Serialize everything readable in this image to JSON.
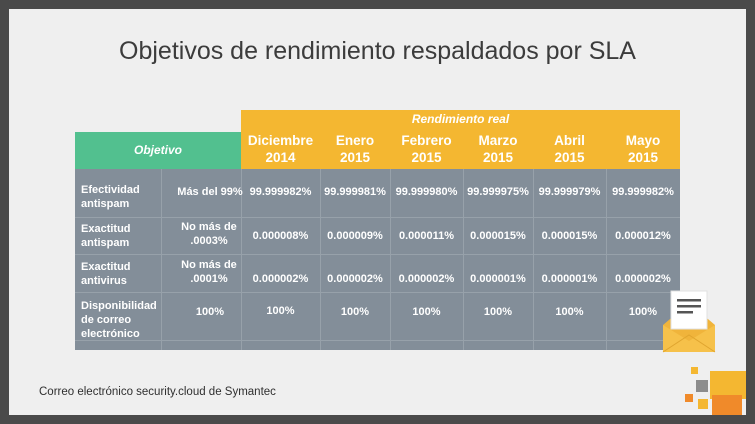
{
  "slide": {
    "title": "Objetivos de rendimiento respaldados por SLA",
    "footer": "Correo electrónico security.cloud de Symantec"
  },
  "table": {
    "objective_header": "Objetivo",
    "actual_header": "Rendimiento real",
    "months": [
      {
        "name": "Diciembre",
        "year": "2014"
      },
      {
        "name": "Enero",
        "year": "2015"
      },
      {
        "name": "Febrero",
        "year": "2015"
      },
      {
        "name": "Marzo",
        "year": "2015"
      },
      {
        "name": "Abril",
        "year": "2015"
      },
      {
        "name": "Mayo",
        "year": "2015"
      }
    ],
    "rows": [
      {
        "metric": "Efectividad antispam",
        "objective": "Más del 99%",
        "values": [
          "99.999982%",
          "99.999981%",
          "99.999980%",
          "99.999975%",
          "99.999979%",
          "99.999982%"
        ]
      },
      {
        "metric": "Exactitud antispam",
        "objective": "No más de .0003%",
        "values": [
          "0.000008%",
          "0.000009%",
          "0.000011%",
          "0.000015%",
          "0.000015%",
          "0.000012%"
        ]
      },
      {
        "metric": "Exactitud antivirus",
        "objective": "No más de .0001%",
        "values": [
          "0.000002%",
          "0.000002%",
          "0.000002%",
          "0.000001%",
          "0.000001%",
          "0.000002%"
        ]
      },
      {
        "metric": "Disponibilidad de correo electrónico",
        "objective": "100%",
        "values": [
          "100%",
          "100%",
          "100%",
          "100%",
          "100%",
          "100%"
        ]
      }
    ]
  },
  "colors": {
    "header_orange": "#f4b731",
    "objective_green": "#52c08f",
    "body_gray": "#838e99",
    "background": "#efefef"
  },
  "icons": [
    "envelope-icon",
    "corner-squares-logo"
  ]
}
